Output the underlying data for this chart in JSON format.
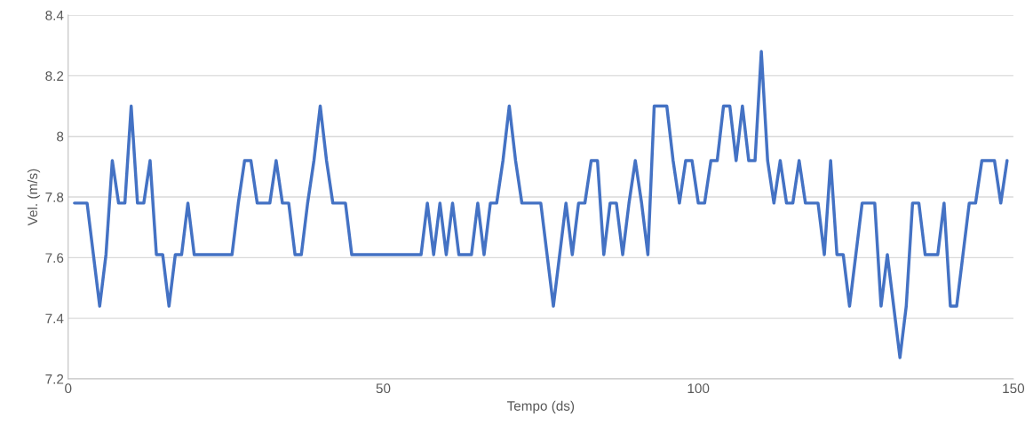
{
  "chart_data": {
    "type": "line",
    "xlabel": "Tempo (ds)",
    "ylabel": "Vel. (m/s)",
    "x": [
      1,
      2,
      3,
      4,
      5,
      6,
      7,
      8,
      9,
      10,
      11,
      12,
      13,
      14,
      15,
      16,
      17,
      18,
      19,
      20,
      21,
      22,
      23,
      24,
      25,
      26,
      27,
      28,
      29,
      30,
      31,
      32,
      33,
      34,
      35,
      36,
      37,
      38,
      39,
      40,
      41,
      42,
      43,
      44,
      45,
      46,
      47,
      48,
      49,
      50,
      51,
      52,
      53,
      54,
      55,
      56,
      57,
      58,
      59,
      60,
      61,
      62,
      63,
      64,
      65,
      66,
      67,
      68,
      69,
      70,
      71,
      72,
      73,
      74,
      75,
      76,
      77,
      78,
      79,
      80,
      81,
      82,
      83,
      84,
      85,
      86,
      87,
      88,
      89,
      90,
      91,
      92,
      93,
      94,
      95,
      96,
      97,
      98,
      99,
      100,
      101,
      102,
      103,
      104,
      105,
      106,
      107,
      108,
      109,
      110,
      111,
      112,
      113,
      114,
      115,
      116,
      117,
      118,
      119,
      120,
      121,
      122,
      123,
      124,
      125,
      126,
      127,
      128,
      129,
      130,
      131,
      132,
      133,
      134,
      135,
      136,
      137,
      138,
      139,
      140,
      141,
      142,
      143,
      144,
      145,
      146,
      147,
      148,
      149
    ],
    "series": [
      {
        "color": "#4472c4",
        "values": [
          7.78,
          7.78,
          7.78,
          7.61,
          7.44,
          7.61,
          7.92,
          7.78,
          7.78,
          8.1,
          7.78,
          7.78,
          7.92,
          7.61,
          7.61,
          7.44,
          7.61,
          7.61,
          7.78,
          7.61,
          7.61,
          7.61,
          7.61,
          7.61,
          7.61,
          7.61,
          7.78,
          7.92,
          7.92,
          7.78,
          7.78,
          7.78,
          7.92,
          7.78,
          7.78,
          7.61,
          7.61,
          7.78,
          7.92,
          8.1,
          7.92,
          7.78,
          7.78,
          7.78,
          7.61,
          7.61,
          7.61,
          7.61,
          7.61,
          7.61,
          7.61,
          7.61,
          7.61,
          7.61,
          7.61,
          7.61,
          7.78,
          7.61,
          7.78,
          7.61,
          7.78,
          7.61,
          7.61,
          7.61,
          7.78,
          7.61,
          7.78,
          7.78,
          7.92,
          8.1,
          7.92,
          7.78,
          7.78,
          7.78,
          7.78,
          7.61,
          7.44,
          7.61,
          7.78,
          7.61,
          7.78,
          7.78,
          7.92,
          7.92,
          7.61,
          7.78,
          7.78,
          7.61,
          7.78,
          7.92,
          7.78,
          7.61,
          8.1,
          8.1,
          8.1,
          7.92,
          7.78,
          7.92,
          7.92,
          7.78,
          7.78,
          7.92,
          7.92,
          8.1,
          8.1,
          7.92,
          8.1,
          7.92,
          7.92,
          8.28,
          7.92,
          7.78,
          7.92,
          7.78,
          7.78,
          7.92,
          7.78,
          7.78,
          7.78,
          7.61,
          7.92,
          7.61,
          7.61,
          7.44,
          7.61,
          7.78,
          7.78,
          7.78,
          7.44,
          7.61,
          7.44,
          7.27,
          7.44,
          7.78,
          7.78,
          7.61,
          7.61,
          7.61,
          7.78,
          7.44,
          7.44,
          7.61,
          7.78,
          7.78,
          7.92,
          7.92,
          7.92,
          7.78,
          7.92
        ]
      }
    ],
    "xlim": [
      0,
      150
    ],
    "xticks": [
      0,
      50,
      100,
      150
    ],
    "ylim": [
      7.2,
      8.4
    ],
    "yticks": [
      7.2,
      7.4,
      7.6,
      7.8,
      8,
      8.2,
      8.4
    ],
    "grid": "y",
    "marker": "none",
    "line_style": "solid"
  }
}
